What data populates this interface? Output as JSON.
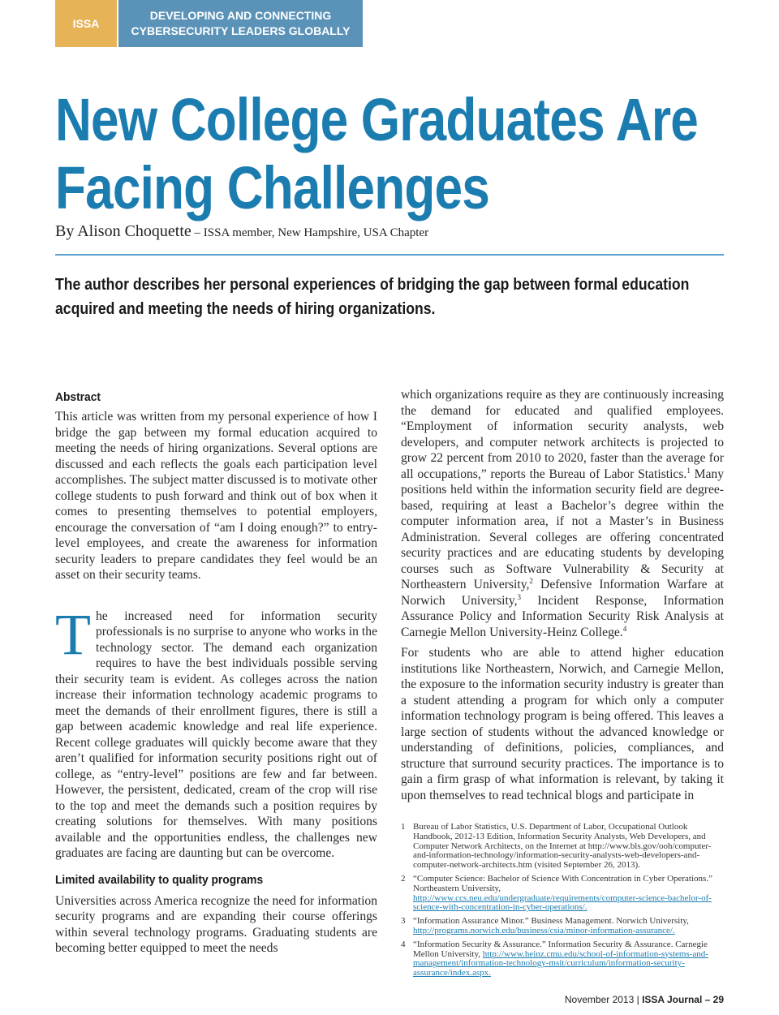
{
  "header": {
    "badge": "ISSA",
    "tagline_1": "DEVELOPING AND CONNECTING",
    "tagline_2": "CYBERSECURITY LEADERS GLOBALLY"
  },
  "title_1": "New College Graduates Are",
  "title_2": "Facing Challenges",
  "byline": {
    "author": "By Alison Choquette",
    "affiliation": " – ISSA member, New Hampshire, USA Chapter"
  },
  "deck": "The author describes her personal experiences of bridging the gap between formal education acquired and meeting the needs of hiring organizations.",
  "abstract": {
    "heading": "Abstract",
    "text": "This article was written from my personal experience of how I bridge the gap between my formal education acquired to meeting the needs of hiring organizations. Several options are discussed and each reflects the goals each participation level accomplishes. The subject matter discussed is to motivate other college students to push forward and think out of box when it comes to presenting themselves to potential employers, encourage the conversation of “am I doing enough?” to entry-level employees, and create the awareness for information security leaders to prepare candidates they feel would be an asset on their security teams."
  },
  "body_1": {
    "dropcap": "T",
    "text": "he increased need for information security professionals is no surprise to anyone who works in the technology sector. The demand each organization requires to have the best individuals possible serving their security team is evident. As colleges across the nation increase their information technology academic programs to meet the demands of their enrollment figures, there is still a gap between academic knowledge and real life experience. Recent college graduates will quickly become aware that they aren’t qualified for information security positions right out of college, as “entry-level” positions are few and far between. However, the persistent, dedicated, cream of the crop will rise to the top and meet the demands such a position requires by creating solutions for themselves. With many positions available and the opportunities endless, the challenges new graduates are facing are daunting but can be overcome."
  },
  "section_2": {
    "heading": "Limited availability to quality programs",
    "text": "Universities across America recognize the need for information security programs and are expanding their course offerings within several technology programs. Graduating students are becoming better equipped to meet the needs"
  },
  "right_1": {
    "a": "which organizations require as they are continuously increasing the demand for educated and qualified employees. “Employment of information security analysts, web developers, and computer network architects is projected to grow 22 percent from 2010 to 2020, faster than the average for all occupations,” reports the Bureau of Labor Statistics.",
    "s1": "1",
    "b": " Many positions held within the information security field are degree-based, requiring at least a Bachelor’s degree within the computer information area, if not a Master’s in Business Administration. Several colleges are offering concentrated security practices and are educating students by developing courses such as Software Vulnerability & Security at Northeastern University,",
    "s2": "2",
    "c": " Defensive Information Warfare at Norwich University,",
    "s3": "3",
    "d": " Incident Response, Information Assurance Policy and Information Security Risk Analysis at Carnegie Mellon University-Heinz College.",
    "s4": "4"
  },
  "right_2": "For students who are able to attend higher education institutions like Northeastern, Norwich, and Carnegie Mellon, the exposure to the information security industry is greater than a student attending a program for which only a computer information technology program is being offered. This leaves a large section of students without the advanced knowledge or understanding of definitions, policies, compliances, and structure that surround security practices. The importance is to gain a firm grasp of what information is relevant, by taking it upon themselves to read technical blogs and participate in",
  "footnotes": [
    {
      "n": "1",
      "text": "Bureau of Labor Statistics, U.S. Department of Labor, Occupational Outlook Handbook, 2012-13 Edition, Information Security Analysts, Web Developers, and Computer Network Architects, on the Internet at http://www.bls.gov/ooh/computer-and-information-technology/information-security-analysts-web-developers-and-computer-network-architects.htm (visited September 26, 2013).",
      "link": ""
    },
    {
      "n": "2",
      "text": "“Computer Science: Bachelor of Science With Concentration in Cyber Operations.” Northeastern University, ",
      "link": "http://www.ccs.neu.edu/undergraduate/requirements/computer-science-bachelor-of-science-with-concentration-in-cyber-operations/."
    },
    {
      "n": "3",
      "text": "“Information Assurance Minor.” Business Management. Norwich University, ",
      "link": "http://programs.norwich.edu/business/csia/minor-information-assurance/."
    },
    {
      "n": "4",
      "text": "“Information Security & Assurance.” Information Security & Assurance. Carnegie Mellon University, ",
      "link": "http://www.heinz.cmu.edu/school-of-information-systems-and-management/information-technology-msit/curriculum/information-security-assurance/index.aspx."
    }
  ],
  "footer": {
    "date": "November 2013 | ",
    "journal": "ISSA Journal – 29"
  },
  "colors": {
    "accent": "#1b7cb0",
    "badge": "#e6b456",
    "banner": "#5b93b8"
  }
}
